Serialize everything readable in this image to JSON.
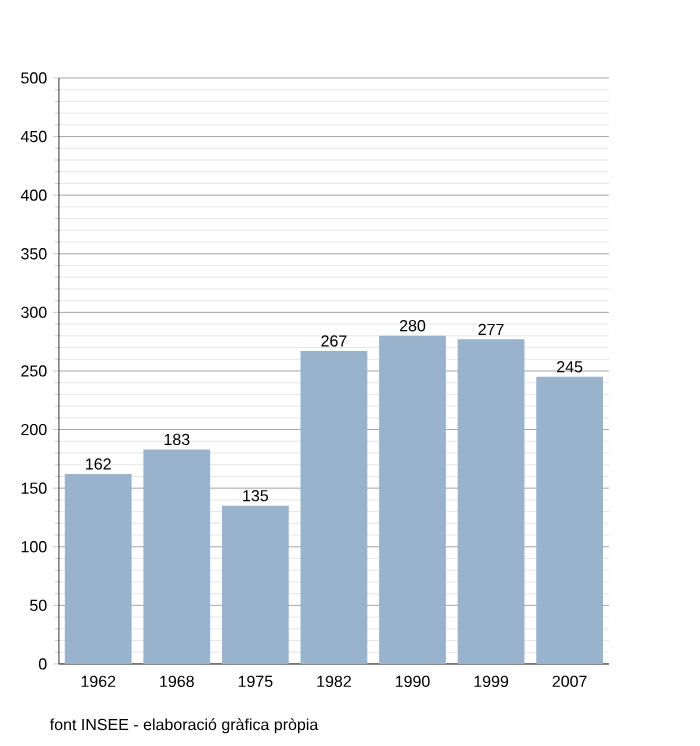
{
  "chart_data": {
    "type": "bar",
    "categories": [
      "1962",
      "1968",
      "1975",
      "1982",
      "1990",
      "1999",
      "2007"
    ],
    "values": [
      162,
      183,
      135,
      267,
      280,
      277,
      245
    ],
    "color": "#99b3cc",
    "ylim": [
      0,
      500
    ],
    "yticks": [
      0,
      50,
      100,
      150,
      200,
      250,
      300,
      350,
      400,
      450,
      500
    ],
    "grid": "y",
    "data_labels": true,
    "annotations": [
      "font INSEE - elaboració gràfica pròpia"
    ]
  }
}
